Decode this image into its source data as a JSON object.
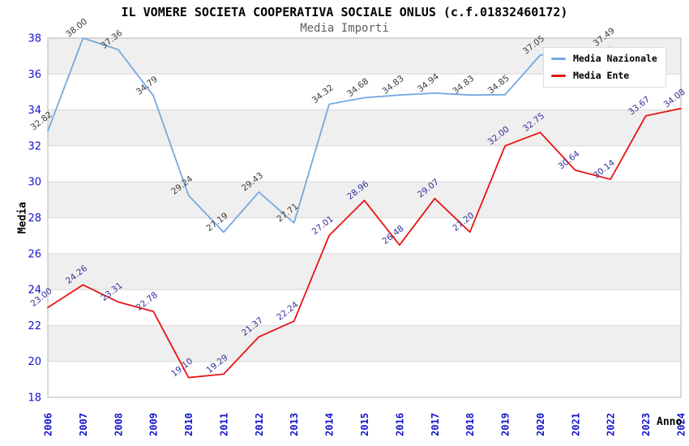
{
  "title": "IL VOMERE SOCIETA COOPERATIVA SOCIALE ONLUS (c.f.01832460172)",
  "subtitle": "Media Importi",
  "axes": {
    "y_label": "Media",
    "x_label": "Anno",
    "y_ticks": [
      38,
      36,
      34,
      32,
      30,
      28,
      26,
      24,
      22,
      20,
      18
    ],
    "x_ticks": [
      2006,
      2007,
      2008,
      2009,
      2010,
      2011,
      2012,
      2013,
      2014,
      2015,
      2016,
      2017,
      2018,
      2019,
      2020,
      2021,
      2022,
      2023,
      2024
    ]
  },
  "legend": {
    "items": [
      {
        "label": "Media Nazionale",
        "color": "#74aadf"
      },
      {
        "label": "Media Ente",
        "color": "#e81414"
      }
    ]
  },
  "style": {
    "band_color": "#efefef",
    "grid_color": "#d8d8d8",
    "plot_border_color": "#b4b4b4",
    "tick_color": "#1414cc"
  },
  "chart_data": {
    "type": "line",
    "title": "IL VOMERE SOCIETA COOPERATIVA SOCIALE ONLUS (c.f.01832460172)",
    "subtitle": "Media Importi",
    "xlabel": "Anno",
    "ylabel": "Media",
    "ylim": [
      18,
      38
    ],
    "grid": true,
    "legend_position": "top-right",
    "x": [
      2006,
      2007,
      2008,
      2009,
      2010,
      2011,
      2012,
      2013,
      2014,
      2015,
      2016,
      2017,
      2018,
      2019,
      2020,
      2021,
      2022,
      2023,
      2024
    ],
    "series": [
      {
        "name": "Media Nazionale",
        "color": "#74aadf",
        "label_color": "#3c3c3c",
        "values": [
          32.82,
          38.0,
          37.36,
          34.79,
          29.24,
          27.19,
          29.43,
          27.71,
          34.32,
          34.68,
          34.83,
          34.94,
          34.83,
          34.85,
          37.05,
          37.25,
          37.49,
          null,
          null
        ],
        "labels": [
          "32.82",
          "38.00",
          "37.36",
          "34.79",
          "29.24",
          "27.19",
          "29.43",
          "27.71",
          "34.32",
          "34.68",
          "34.83",
          "34.94",
          "34.83",
          "34.85",
          "37.05",
          "",
          "37.49",
          "",
          ""
        ]
      },
      {
        "name": "Media Ente",
        "color": "#e81414",
        "label_color": "#333399",
        "values": [
          23.0,
          24.26,
          23.31,
          22.78,
          19.1,
          19.29,
          21.37,
          22.24,
          27.01,
          28.96,
          26.48,
          29.07,
          27.2,
          32.0,
          32.75,
          30.64,
          30.14,
          33.67,
          34.08
        ],
        "labels": [
          "23.00",
          "24.26",
          "23.31",
          "22.78",
          "19.10",
          "19.29",
          "21.37",
          "22.24",
          "27.01",
          "28.96",
          "26.48",
          "29.07",
          "27.20",
          "32.00",
          "32.75",
          "30.64",
          "30.14",
          "33.67",
          "34.08"
        ]
      }
    ]
  }
}
